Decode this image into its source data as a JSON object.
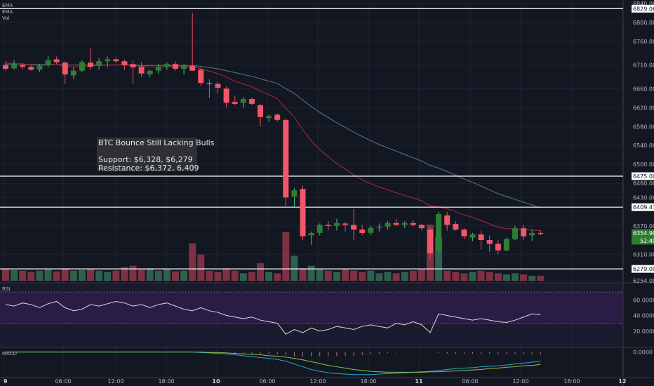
{
  "chart_data": {
    "type": "candlestick",
    "indicators": [
      "EMA",
      "EMA",
      "Vol"
    ],
    "ylim": [
      6254,
      6840
    ],
    "price_ticks": [
      6840,
      6800,
      6760,
      6710,
      6660,
      6620,
      6580,
      6540,
      6500,
      6460,
      6430,
      6370,
      6310,
      6254
    ],
    "lines": [
      {
        "value": 6829.06,
        "label": "6829.06"
      },
      {
        "value": 6475.0,
        "label": "6475.00"
      },
      {
        "value": 6409.47,
        "label": "6409.47"
      },
      {
        "value": 6279.0,
        "label": "6279.00"
      }
    ],
    "current_price": {
      "value": 6354.9,
      "label": "6354.90",
      "countdown": "52:40"
    },
    "x_ticks": [
      "9",
      "06:00",
      "12:00",
      "18:00",
      "10",
      "06:00",
      "12:00",
      "18:00",
      "11",
      "06:00",
      "12:00",
      "18:00",
      "12"
    ],
    "annotation": {
      "title": "BTC Bounce Still Lacking Bulls",
      "line1": "Support: $6,328, $6,279",
      "line2": "Resistance: $6,372, 6,409"
    },
    "candles": [
      {
        "o": 6710,
        "h": 6718,
        "l": 6698,
        "c": 6702
      },
      {
        "o": 6703,
        "h": 6720,
        "l": 6700,
        "c": 6712
      },
      {
        "o": 6710,
        "h": 6715,
        "l": 6700,
        "c": 6706
      },
      {
        "o": 6706,
        "h": 6710,
        "l": 6698,
        "c": 6700
      },
      {
        "o": 6700,
        "h": 6712,
        "l": 6695,
        "c": 6708
      },
      {
        "o": 6710,
        "h": 6730,
        "l": 6705,
        "c": 6720
      },
      {
        "o": 6722,
        "h": 6728,
        "l": 6712,
        "c": 6716
      },
      {
        "o": 6715,
        "h": 6718,
        "l": 6670,
        "c": 6690
      },
      {
        "o": 6688,
        "h": 6705,
        "l": 6680,
        "c": 6698
      },
      {
        "o": 6698,
        "h": 6720,
        "l": 6695,
        "c": 6716
      },
      {
        "o": 6715,
        "h": 6745,
        "l": 6700,
        "c": 6706
      },
      {
        "o": 6708,
        "h": 6725,
        "l": 6700,
        "c": 6718
      },
      {
        "o": 6718,
        "h": 6728,
        "l": 6705,
        "c": 6722
      },
      {
        "o": 6722,
        "h": 6726,
        "l": 6715,
        "c": 6718
      },
      {
        "o": 6718,
        "h": 6722,
        "l": 6700,
        "c": 6710
      },
      {
        "o": 6712,
        "h": 6720,
        "l": 6670,
        "c": 6705
      },
      {
        "o": 6706,
        "h": 6716,
        "l": 6685,
        "c": 6692
      },
      {
        "o": 6690,
        "h": 6700,
        "l": 6685,
        "c": 6698
      },
      {
        "o": 6698,
        "h": 6712,
        "l": 6692,
        "c": 6706
      },
      {
        "o": 6706,
        "h": 6715,
        "l": 6700,
        "c": 6712
      },
      {
        "o": 6712,
        "h": 6718,
        "l": 6698,
        "c": 6702
      },
      {
        "o": 6702,
        "h": 6712,
        "l": 6690,
        "c": 6708
      },
      {
        "o": 6708,
        "h": 6820,
        "l": 6700,
        "c": 6698
      },
      {
        "o": 6700,
        "h": 6705,
        "l": 6665,
        "c": 6672
      },
      {
        "o": 6672,
        "h": 6680,
        "l": 6640,
        "c": 6670
      },
      {
        "o": 6670,
        "h": 6675,
        "l": 6650,
        "c": 6662
      },
      {
        "o": 6660,
        "h": 6665,
        "l": 6620,
        "c": 6630
      },
      {
        "o": 6632,
        "h": 6645,
        "l": 6625,
        "c": 6628
      },
      {
        "o": 6630,
        "h": 6642,
        "l": 6620,
        "c": 6638
      },
      {
        "o": 6638,
        "h": 6642,
        "l": 6625,
        "c": 6628
      },
      {
        "o": 6625,
        "h": 6628,
        "l": 6580,
        "c": 6600
      },
      {
        "o": 6598,
        "h": 6605,
        "l": 6590,
        "c": 6602
      },
      {
        "o": 6605,
        "h": 6608,
        "l": 6590,
        "c": 6594
      },
      {
        "o": 6594,
        "h": 6598,
        "l": 6410,
        "c": 6430
      },
      {
        "o": 6432,
        "h": 6450,
        "l": 6410,
        "c": 6445
      },
      {
        "o": 6448,
        "h": 6455,
        "l": 6340,
        "c": 6348
      },
      {
        "o": 6350,
        "h": 6358,
        "l": 6330,
        "c": 6355
      },
      {
        "o": 6355,
        "h": 6375,
        "l": 6350,
        "c": 6372
      },
      {
        "o": 6372,
        "h": 6380,
        "l": 6360,
        "c": 6370
      },
      {
        "o": 6370,
        "h": 6385,
        "l": 6360,
        "c": 6376
      },
      {
        "o": 6375,
        "h": 6378,
        "l": 6358,
        "c": 6372
      },
      {
        "o": 6372,
        "h": 6405,
        "l": 6340,
        "c": 6362
      },
      {
        "o": 6362,
        "h": 6372,
        "l": 6350,
        "c": 6355
      },
      {
        "o": 6355,
        "h": 6370,
        "l": 6350,
        "c": 6366
      },
      {
        "o": 6366,
        "h": 6375,
        "l": 6358,
        "c": 6368
      },
      {
        "o": 6368,
        "h": 6380,
        "l": 6362,
        "c": 6376
      },
      {
        "o": 6376,
        "h": 6385,
        "l": 6370,
        "c": 6372
      },
      {
        "o": 6372,
        "h": 6380,
        "l": 6365,
        "c": 6376
      },
      {
        "o": 6376,
        "h": 6382,
        "l": 6368,
        "c": 6372
      },
      {
        "o": 6372,
        "h": 6375,
        "l": 6360,
        "c": 6365
      },
      {
        "o": 6362,
        "h": 6368,
        "l": 6300,
        "c": 6312
      },
      {
        "o": 6318,
        "h": 6400,
        "l": 6315,
        "c": 6395
      },
      {
        "o": 6392,
        "h": 6400,
        "l": 6360,
        "c": 6372
      },
      {
        "o": 6374,
        "h": 6380,
        "l": 6360,
        "c": 6362
      },
      {
        "o": 6362,
        "h": 6365,
        "l": 6342,
        "c": 6348
      },
      {
        "o": 6345,
        "h": 6355,
        "l": 6338,
        "c": 6352
      },
      {
        "o": 6352,
        "h": 6360,
        "l": 6320,
        "c": 6340
      },
      {
        "o": 6340,
        "h": 6350,
        "l": 6315,
        "c": 6332
      },
      {
        "o": 6332,
        "h": 6340,
        "l": 6310,
        "c": 6318
      },
      {
        "o": 6318,
        "h": 6345,
        "l": 6316,
        "c": 6342
      },
      {
        "o": 6342,
        "h": 6370,
        "l": 6340,
        "c": 6365
      },
      {
        "o": 6365,
        "h": 6372,
        "l": 6340,
        "c": 6348
      },
      {
        "o": 6350,
        "h": 6362,
        "l": 6338,
        "c": 6355
      },
      {
        "o": 6355,
        "h": 6360,
        "l": 6350,
        "c": 6354.9
      }
    ],
    "volume": [
      18,
      17,
      16,
      14,
      16,
      18,
      15,
      20,
      16,
      17,
      19,
      16,
      14,
      16,
      22,
      24,
      18,
      20,
      16,
      18,
      15,
      16,
      60,
      42,
      16,
      14,
      20,
      16,
      12,
      14,
      28,
      14,
      12,
      78,
      40,
      20,
      24,
      18,
      16,
      14,
      18,
      16,
      14,
      16,
      12,
      14,
      12,
      14,
      16,
      18,
      90,
      70,
      16,
      14,
      12,
      14,
      16,
      14,
      12,
      10,
      12,
      10,
      8,
      8
    ],
    "ema_fast": [
      6715,
      6713,
      6712,
      6710,
      6709,
      6710,
      6711,
      6708,
      6706,
      6707,
      6708,
      6709,
      6710,
      6710,
      6710,
      6709,
      6707,
      6706,
      6706,
      6707,
      6707,
      6707,
      6706,
      6702,
      6697,
      6692,
      6684,
      6676,
      6670,
      6664,
      6655,
      6647,
      6639,
      6618,
      6600,
      6573,
      6550,
      6532,
      6516,
      6502,
      6490,
      6478,
      6467,
      6459,
      6452,
      6446,
      6440,
      6434,
      6429,
      6423,
      6412,
      6410,
      6406,
      6400,
      6393,
      6388,
      6381,
      6374,
      6367,
      6364,
      6364,
      6362,
      6361,
      6360
    ],
    "ema_slow": [
      6712,
      6712,
      6712,
      6711,
      6711,
      6711,
      6711,
      6710,
      6710,
      6710,
      6710,
      6710,
      6710,
      6710,
      6710,
      6710,
      6709,
      6709,
      6709,
      6709,
      6709,
      6709,
      6709,
      6707,
      6705,
      6702,
      6698,
      6694,
      6690,
      6686,
      6681,
      6676,
      6671,
      6660,
      6650,
      6636,
      6622,
      6610,
      6599,
      6588,
      6578,
      6568,
      6559,
      6550,
      6542,
      6535,
      6528,
      6521,
      6514,
      6507,
      6498,
      6492,
      6485,
      6477,
      6469,
      6462,
      6454,
      6446,
      6438,
      6432,
      6426,
      6420,
      6414,
      6408
    ],
    "rsi": {
      "ylim": [
        0,
        80
      ],
      "ticks": [
        60,
        40,
        20
      ],
      "bands": [
        70,
        30
      ],
      "values": [
        54,
        52,
        56,
        54,
        50,
        55,
        58,
        50,
        46,
        48,
        54,
        52,
        55,
        58,
        56,
        52,
        54,
        50,
        54,
        56,
        52,
        48,
        46,
        50,
        46,
        44,
        40,
        38,
        36,
        38,
        34,
        32,
        30,
        16,
        22,
        18,
        24,
        20,
        22,
        26,
        24,
        22,
        26,
        28,
        26,
        24,
        30,
        28,
        32,
        28,
        18,
        42,
        40,
        38,
        36,
        34,
        36,
        34,
        32,
        31,
        34,
        38,
        42,
        41
      ]
    },
    "macd": {
      "ticks": [
        "0.0000"
      ],
      "macd": [
        0,
        0,
        0,
        0,
        0,
        0,
        0,
        0,
        0,
        0,
        0,
        0,
        0,
        0,
        0,
        0,
        0,
        0,
        0,
        0,
        0,
        0,
        0,
        -1,
        -2,
        -3,
        -4,
        -6,
        -8,
        -10,
        -12,
        -14,
        -16,
        -20,
        -26,
        -32,
        -38,
        -42,
        -45,
        -47,
        -48,
        -49,
        -49,
        -49,
        -48,
        -47,
        -46,
        -45,
        -44,
        -43,
        -42,
        -40,
        -38,
        -36,
        -35,
        -34,
        -32,
        -31,
        -30,
        -28,
        -26,
        -24,
        -22,
        -20
      ],
      "signal": [
        0,
        0,
        0,
        0,
        0,
        0,
        0,
        0,
        0,
        0,
        0,
        0,
        0,
        0,
        0,
        0,
        0,
        0,
        0,
        0,
        0,
        0,
        0,
        0,
        -1,
        -1,
        -2,
        -3,
        -4,
        -5,
        -6,
        -8,
        -9,
        -11,
        -14,
        -17,
        -21,
        -25,
        -29,
        -32,
        -35,
        -38,
        -40,
        -42,
        -43,
        -44,
        -44,
        -44,
        -44,
        -44,
        -43,
        -43,
        -42,
        -41,
        -40,
        -39,
        -38,
        -36,
        -35,
        -33,
        -32,
        -30,
        -29,
        -27
      ]
    }
  }
}
